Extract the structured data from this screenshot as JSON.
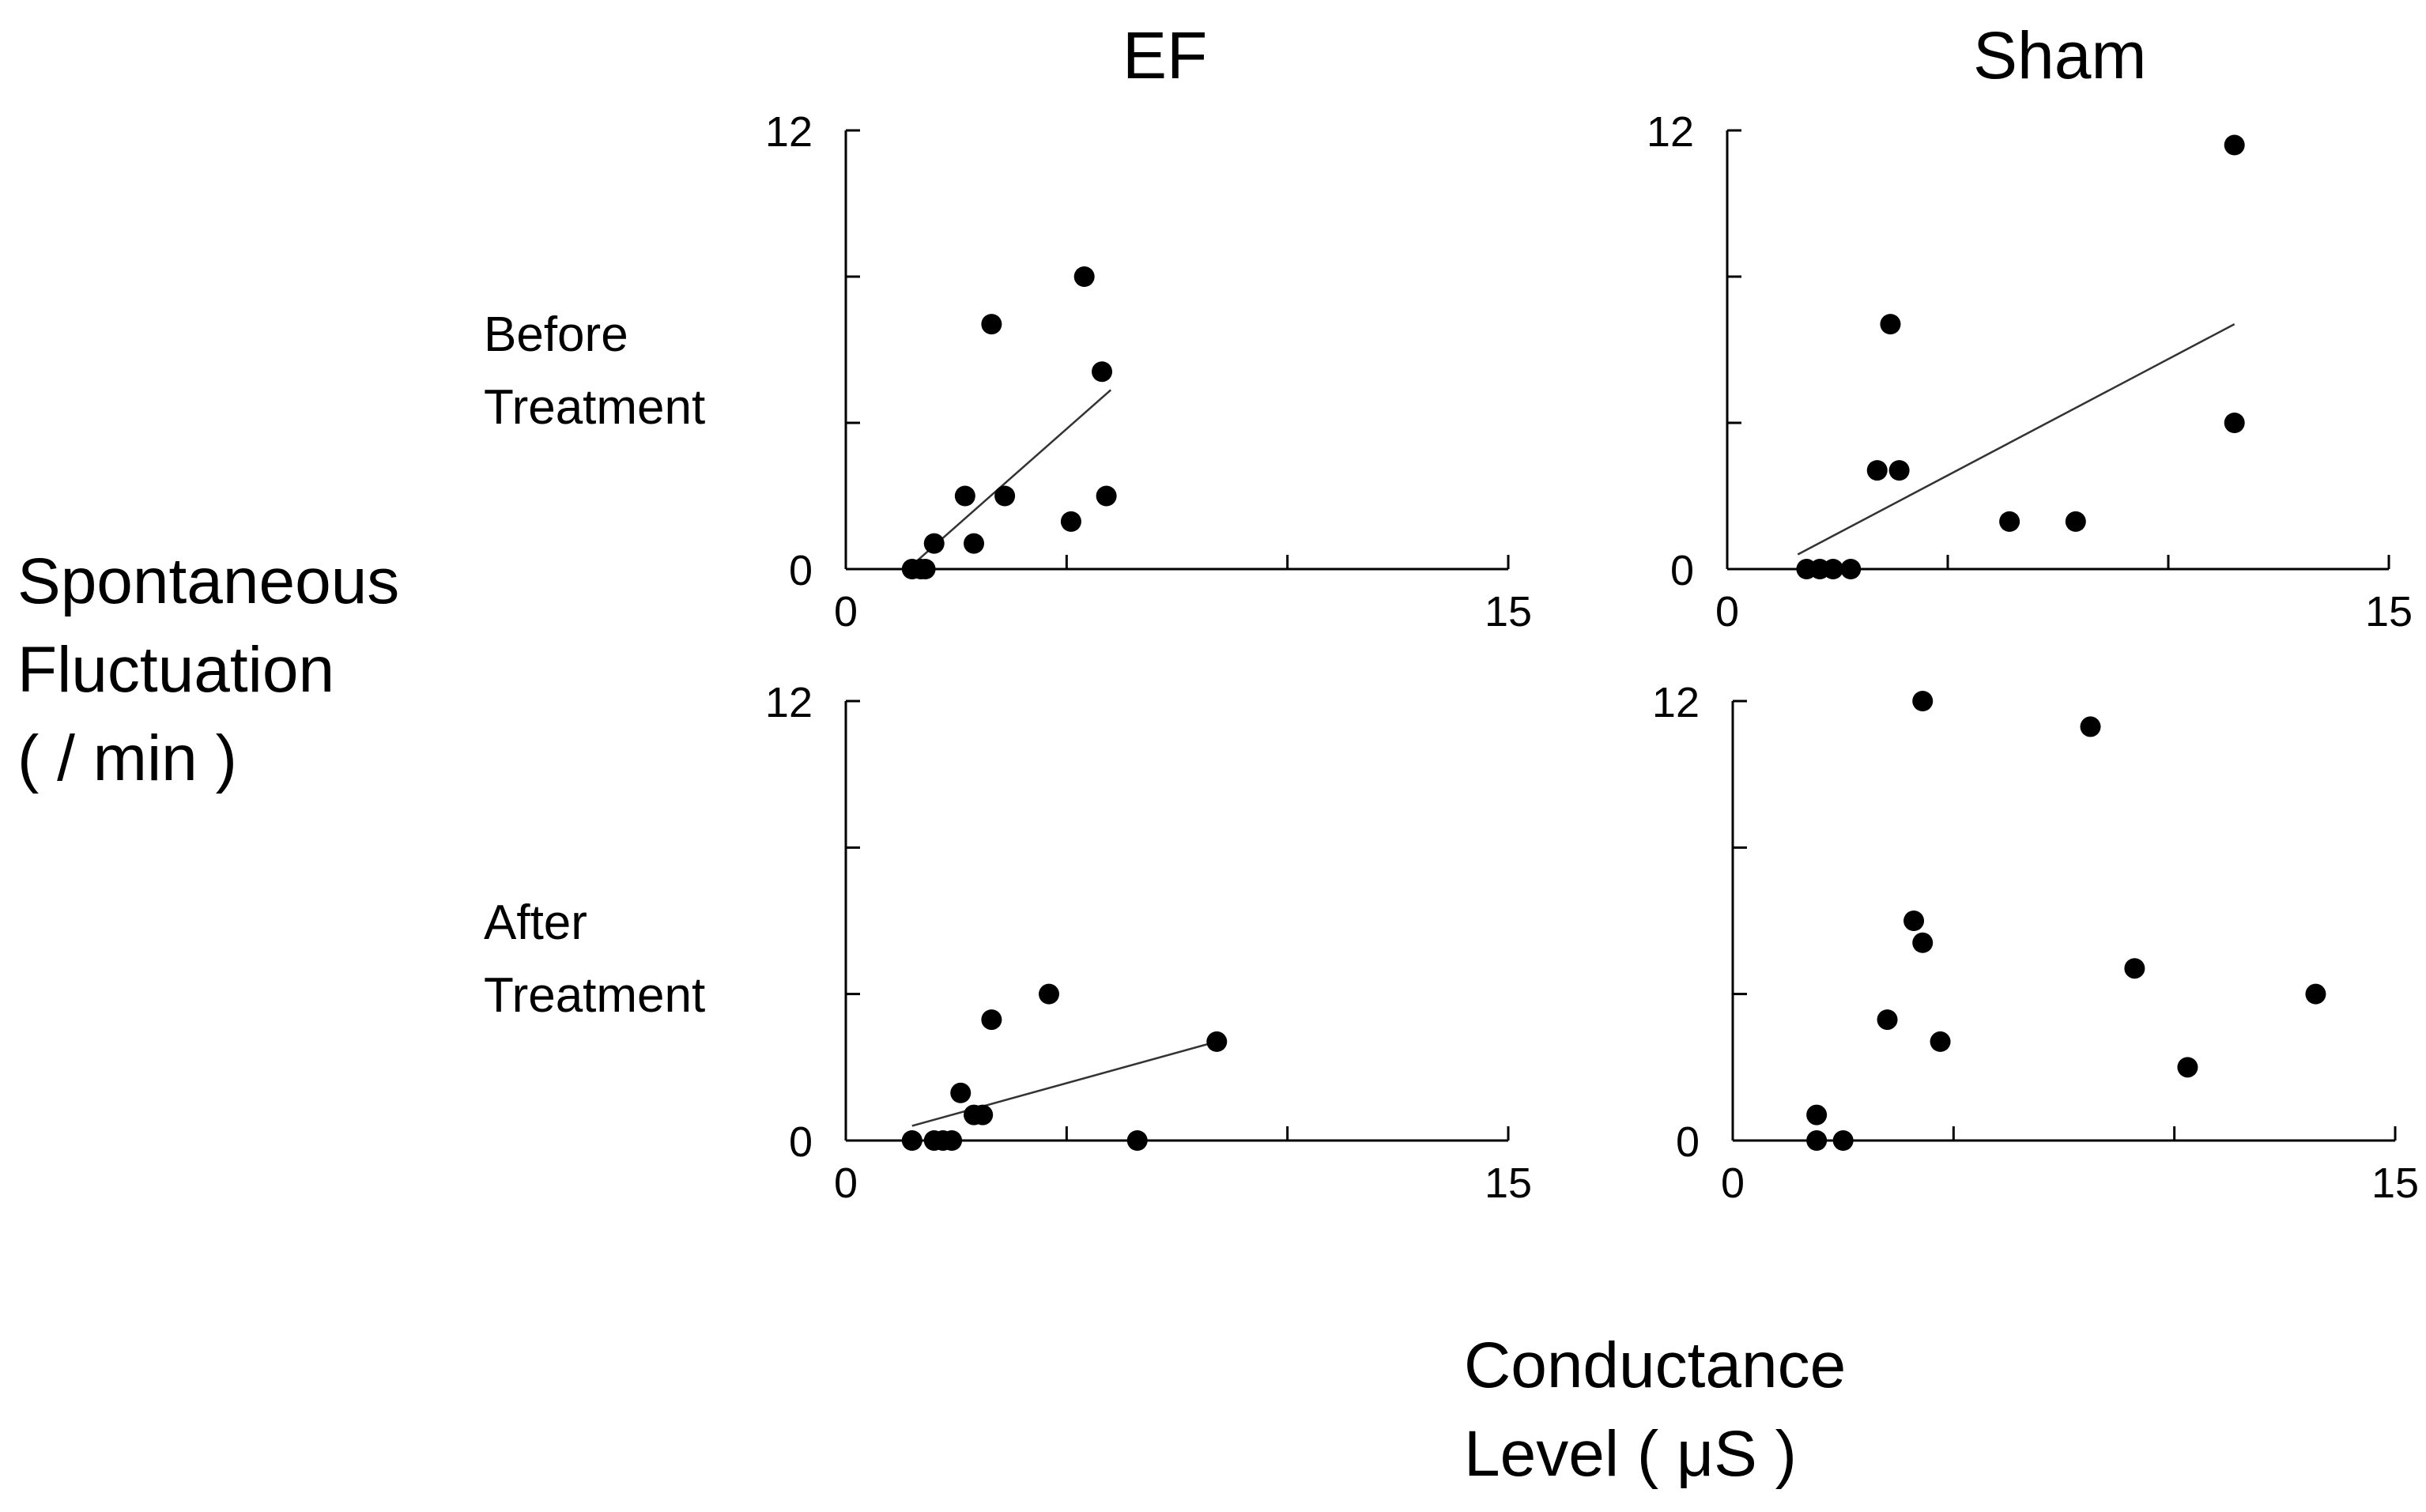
{
  "y_axis_label": [
    "Spontaneous",
    "Fluctuation",
    "( / min )"
  ],
  "x_axis_label": [
    "Conductance",
    "Level ( μS )"
  ],
  "columns": [
    "EF",
    "Sham"
  ],
  "rows": [
    [
      "Before",
      "Treatment"
    ],
    [
      "After",
      "Treatment"
    ]
  ],
  "chart_data": [
    {
      "type": "scatter",
      "title": "EF",
      "subtitle": "Before Treatment",
      "xlabel": "Conductance Level ( μS )",
      "ylabel": "Spontaneous Fluctuation ( / min )",
      "xlim": [
        0,
        15
      ],
      "ylim": [
        0,
        12
      ],
      "x_ticks": [
        0,
        5,
        10,
        15
      ],
      "y_ticks": [
        0,
        4,
        8,
        12
      ],
      "x_tick_labels": [
        "0",
        "15"
      ],
      "y_tick_labels": [
        "0",
        "12"
      ],
      "points": [
        [
          1.5,
          0
        ],
        [
          1.7,
          0
        ],
        [
          1.8,
          0
        ],
        [
          2.0,
          0.7
        ],
        [
          2.7,
          2.0
        ],
        [
          2.9,
          0.7
        ],
        [
          3.3,
          6.7
        ],
        [
          3.6,
          2.0
        ],
        [
          5.1,
          1.3
        ],
        [
          5.4,
          8.0
        ],
        [
          5.8,
          5.4
        ],
        [
          5.9,
          2.0
        ]
      ],
      "trendline": [
        [
          1.4,
          0
        ],
        [
          6.0,
          4.9
        ]
      ]
    },
    {
      "type": "scatter",
      "title": "Sham",
      "subtitle": "Before Treatment",
      "xlabel": "Conductance Level ( μS )",
      "ylabel": "Spontaneous Fluctuation ( / min )",
      "xlim": [
        0,
        15
      ],
      "ylim": [
        0,
        12
      ],
      "x_ticks": [
        0,
        5,
        10,
        15
      ],
      "y_ticks": [
        0,
        4,
        8,
        12
      ],
      "x_tick_labels": [
        "0",
        "15"
      ],
      "y_tick_labels": [
        "0",
        "12"
      ],
      "points": [
        [
          1.8,
          0
        ],
        [
          2.1,
          0
        ],
        [
          2.4,
          0
        ],
        [
          2.8,
          0
        ],
        [
          3.4,
          2.7
        ],
        [
          3.7,
          6.7
        ],
        [
          3.9,
          2.7
        ],
        [
          6.4,
          1.3
        ],
        [
          7.9,
          1.3
        ],
        [
          11.5,
          11.6
        ],
        [
          11.5,
          4.0
        ]
      ],
      "trendline": [
        [
          1.6,
          0.4
        ],
        [
          11.5,
          6.7
        ]
      ]
    },
    {
      "type": "scatter",
      "title": "EF",
      "subtitle": "After Treatment",
      "xlabel": "Conductance Level ( μS )",
      "ylabel": "Spontaneous Fluctuation ( / min )",
      "xlim": [
        0,
        15
      ],
      "ylim": [
        0,
        12
      ],
      "x_ticks": [
        0,
        5,
        10,
        15
      ],
      "y_ticks": [
        0,
        4,
        8,
        12
      ],
      "x_tick_labels": [
        "0",
        "15"
      ],
      "y_tick_labels": [
        "0",
        "12"
      ],
      "points": [
        [
          1.5,
          0
        ],
        [
          2.0,
          0
        ],
        [
          2.2,
          0
        ],
        [
          2.4,
          0
        ],
        [
          2.6,
          1.3
        ],
        [
          2.9,
          0.7
        ],
        [
          3.1,
          0.7
        ],
        [
          3.3,
          3.3
        ],
        [
          4.6,
          4.0
        ],
        [
          6.6,
          0
        ],
        [
          8.4,
          2.7
        ]
      ],
      "trendline": [
        [
          1.5,
          0.4
        ],
        [
          8.4,
          2.7
        ]
      ]
    },
    {
      "type": "scatter",
      "title": "Sham",
      "subtitle": "After Treatment",
      "xlabel": "Conductance Level ( μS )",
      "ylabel": "Spontaneous Fluctuation ( / min )",
      "xlim": [
        0,
        15
      ],
      "ylim": [
        0,
        12
      ],
      "x_ticks": [
        0,
        5,
        10,
        15
      ],
      "y_ticks": [
        0,
        4,
        8,
        12
      ],
      "x_tick_labels": [
        "0",
        "15"
      ],
      "y_tick_labels": [
        "0",
        "12"
      ],
      "points": [
        [
          1.9,
          0.7
        ],
        [
          1.9,
          0
        ],
        [
          2.5,
          0
        ],
        [
          3.5,
          3.3
        ],
        [
          4.1,
          6.0
        ],
        [
          4.3,
          5.4
        ],
        [
          4.3,
          12.0
        ],
        [
          4.7,
          2.7
        ],
        [
          8.1,
          11.3
        ],
        [
          9.1,
          4.7
        ],
        [
          10.3,
          2.0
        ],
        [
          13.2,
          4.0
        ]
      ],
      "trendline": null
    }
  ]
}
